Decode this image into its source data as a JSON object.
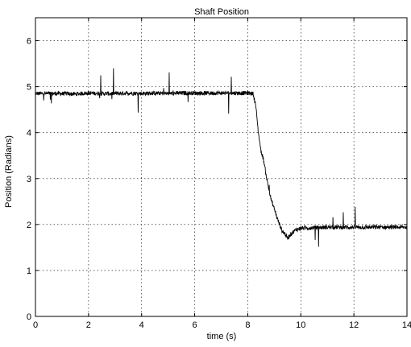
{
  "chart_data": {
    "type": "line",
    "title": "Shaft Position",
    "xlabel": "time (s)",
    "ylabel": "Position (Radians)",
    "xlim": [
      0,
      14
    ],
    "ylim": [
      0,
      6.5
    ],
    "xticks": [
      "0",
      "2",
      "4",
      "6",
      "8",
      "10",
      "12",
      "14"
    ],
    "yticks": [
      "0",
      "1",
      "2",
      "3",
      "4",
      "5",
      "6"
    ],
    "grid": true,
    "series": [
      {
        "color": "#000000",
        "x": [
          0.0,
          0.5,
          1.0,
          1.5,
          2.0,
          2.5,
          3.0,
          3.5,
          4.0,
          4.5,
          5.0,
          5.5,
          6.0,
          6.5,
          7.0,
          7.5,
          8.0,
          8.2,
          8.3,
          8.4,
          8.5,
          8.6,
          8.7,
          8.8,
          8.9,
          9.0,
          9.1,
          9.2,
          9.3,
          9.4,
          9.5,
          9.6,
          9.8,
          10.0,
          10.5,
          11.0,
          11.5,
          12.0,
          12.5,
          13.0,
          13.5,
          14.0
        ],
        "y": [
          4.85,
          4.85,
          4.85,
          4.84,
          4.86,
          4.85,
          4.85,
          4.86,
          4.85,
          4.86,
          4.85,
          4.86,
          4.86,
          4.86,
          4.86,
          4.86,
          4.86,
          4.85,
          4.6,
          4.0,
          3.6,
          3.4,
          3.05,
          2.75,
          2.5,
          2.35,
          2.15,
          2.0,
          1.85,
          1.8,
          1.7,
          1.78,
          1.88,
          1.92,
          1.93,
          1.94,
          1.94,
          1.94,
          1.94,
          1.94,
          1.94,
          1.94
        ]
      }
    ]
  }
}
